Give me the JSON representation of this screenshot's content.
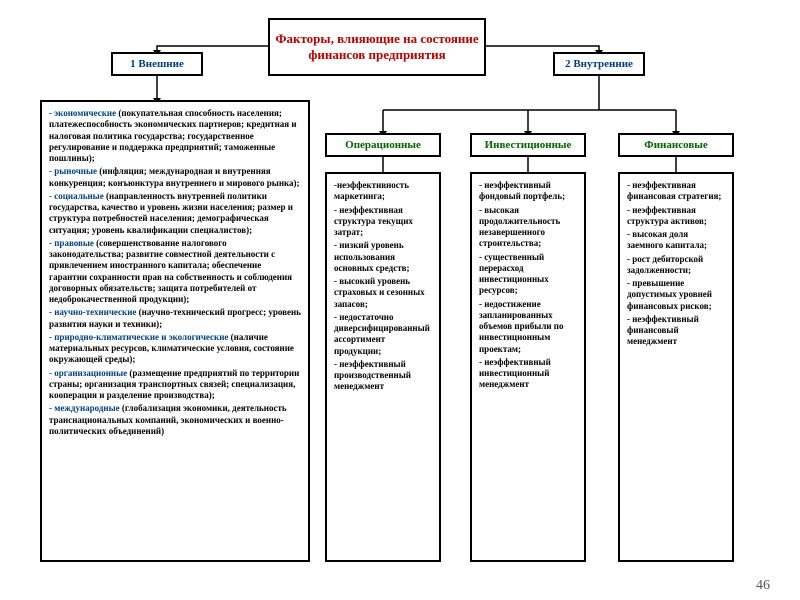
{
  "title": "Факторы, влияющие на состояние финансов предприятия",
  "branch1": {
    "label": "1 Внешние"
  },
  "branch2": {
    "label": "2 Внутренние"
  },
  "cats": {
    "op": {
      "label": "Операционные"
    },
    "inv": {
      "label": "Инвестиционные"
    },
    "fin": {
      "label": "Финансовые"
    }
  },
  "external": {
    "items": [
      {
        "head": "- экономические",
        "body": " (покупательная способность населения; платежеспособность экономических партнеров; кредитная и налоговая политика государства; государственное регулирование и поддержка предприятий; таможенные пошлины);"
      },
      {
        "head": "- рыночные",
        "body": " (инфляция; международная и внутренняя конкуренция; конъюнктура внутреннего и мирового рынка);"
      },
      {
        "head": "- социальные",
        "body": " (направленность внутренней политики государства, качество и уровень жизни населения; размер и структура потребностей населения; демографическая ситуация; уровень квалификации специалистов);"
      },
      {
        "head": "- правовые",
        "body": " (совершенствование налогового законодательства; развитие совместной деятельности с привлечением иностранного капитала; обеспечение гарантии сохранности прав на собственность и соблюдения договорных обязательств; защита потребителей от недоброкачественной продукции);"
      },
      {
        "head": "- научно-технические",
        "body": " (научно-технический прогресс; уровень развития науки и техники);"
      },
      {
        "head": "- природно-климатические и экологические",
        "body": " (наличие материальных ресурсов, климатические условия, состояние окружающей среды);"
      },
      {
        "head": "- организационные",
        "body": " (размещение предприятий по территории страны; организация транспортных связей; специализация, кооперация и разделение производства);"
      },
      {
        "head": "- международные",
        "body": " (глобализация экономики, деятельность транснациональных компаний, экономических и военно-политических объединений)"
      }
    ]
  },
  "operational": {
    "lines": [
      "-неэффективность маркетинга;",
      "- неэффективная структура текущих затрат;",
      "- низкий уровень использования основных средств;",
      "- высокий уровень страховых и сезонных запасов;",
      "- недостаточно диверсифицированный ассортимент продукции;",
      "- неэффективный производственный менеджмент"
    ]
  },
  "investment": {
    "lines": [
      "- неэффективный фондовый портфель;",
      "- высокая продолжительность незавершенного строительства;",
      "- существенный перерасход инвестиционных ресурсов;",
      "- недостижение запланированных объемов прибыли по инвестиционным проектам;",
      "- неэффективный инвестиционный менеджмент"
    ]
  },
  "financial": {
    "lines": [
      "- неэффективная финансовая стратегия;",
      "- неэффективная структура активов;",
      "- высокая доля заемного капитала;",
      "- рост дебиторской задолженности;",
      "- превышение допустимых уровней финансовых рисков;",
      "- неэффективный финансовый менеджмент"
    ]
  },
  "pageNumber": "46",
  "colors": {
    "title": "#c00000",
    "branch": "#004080",
    "category": "#006400",
    "highlight": "#004080",
    "border": "#000000"
  }
}
